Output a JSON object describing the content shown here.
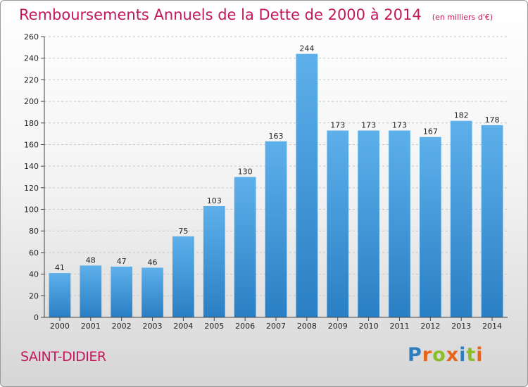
{
  "chart_data": {
    "type": "bar",
    "title": "Remboursements Annuels de la Dette de 2000 à 2014",
    "subtitle": "(en milliers d'€)",
    "categories": [
      "2000",
      "2001",
      "2002",
      "2003",
      "2004",
      "2005",
      "2006",
      "2007",
      "2008",
      "2009",
      "2010",
      "2011",
      "2012",
      "2013",
      "2014"
    ],
    "values": [
      41,
      48,
      47,
      46,
      75,
      103,
      130,
      163,
      244,
      173,
      173,
      173,
      167,
      182,
      178
    ],
    "ylim": [
      0,
      260
    ],
    "yticks": [
      0,
      20,
      40,
      60,
      80,
      100,
      120,
      140,
      160,
      180,
      200,
      220,
      240,
      260
    ],
    "grid": true,
    "bar_color": "#4a9fe0"
  },
  "footer": {
    "commune": "SAINT-DIDIER",
    "logo_letters": [
      "P",
      "r",
      "o",
      "x",
      "i",
      "t",
      "i"
    ],
    "logo_colors": [
      "#2e7dbe",
      "#e8641a",
      "#8cbf26",
      "#e8641a",
      "#2e7dbe",
      "#8cbf26",
      "#e8641a"
    ]
  }
}
